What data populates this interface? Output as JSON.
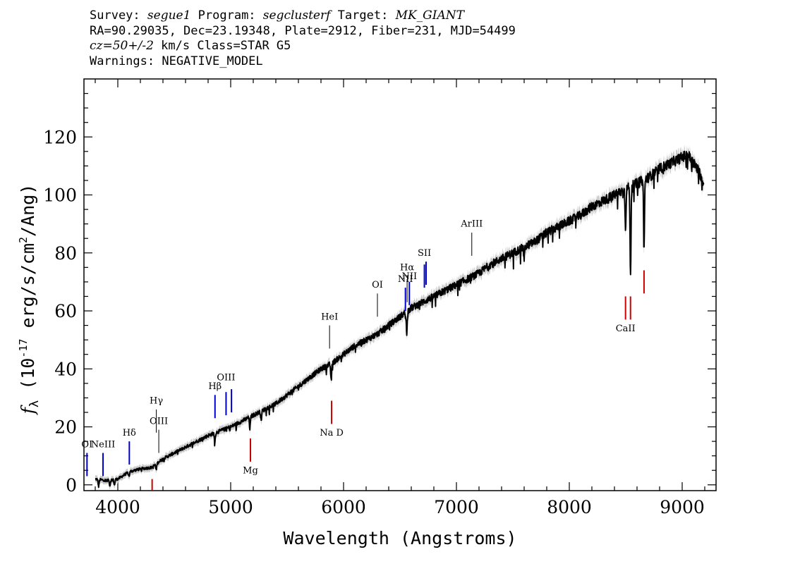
{
  "header": {
    "line1": {
      "survey_label": "Survey:",
      "survey": "segue1",
      "program_label": "Program:",
      "program": "segclusterf",
      "target_label": "Target:",
      "target": "MK_GIANT"
    },
    "line2": "RA=90.29035, Dec=23.19348, Plate=2912, Fiber=231, MJD=54499",
    "line3": {
      "cz": "cz=50+/-2",
      "cz_unit": "km/s",
      "class": "Class=STAR G5"
    },
    "line4": "Warnings: NEGATIVE_MODEL"
  },
  "chart_data": {
    "type": "line",
    "xlabel": "Wavelength (Angstroms)",
    "ylabel": "f_λ (10^-17 erg/s/cm^2/Ang)",
    "xlim": [
      3700,
      9300
    ],
    "ylim": [
      -2,
      140
    ],
    "x_ticks": [
      4000,
      5000,
      6000,
      7000,
      8000,
      9000
    ],
    "y_ticks": [
      0,
      20,
      40,
      60,
      80,
      100,
      120
    ],
    "x_tick_labels": [
      "4000",
      "5000",
      "6000",
      "7000",
      "8000",
      "9000"
    ],
    "y_tick_labels": [
      "0",
      "20",
      "40",
      "60",
      "80",
      "100",
      "120"
    ],
    "series": [
      {
        "color": "#000000",
        "continuum": [
          [
            3800,
            2
          ],
          [
            3900,
            1.5
          ],
          [
            4000,
            2
          ],
          [
            4100,
            4.5
          ],
          [
            4200,
            5.5
          ],
          [
            4300,
            6
          ],
          [
            4400,
            9
          ],
          [
            4500,
            11
          ],
          [
            4600,
            13
          ],
          [
            4700,
            15
          ],
          [
            4800,
            17
          ],
          [
            4900,
            18.5
          ],
          [
            5000,
            20
          ],
          [
            5100,
            22
          ],
          [
            5200,
            24
          ],
          [
            5300,
            26
          ],
          [
            5400,
            28
          ],
          [
            5500,
            31
          ],
          [
            5600,
            34
          ],
          [
            5700,
            37
          ],
          [
            5800,
            40
          ],
          [
            5900,
            42
          ],
          [
            6000,
            45
          ],
          [
            6100,
            48
          ],
          [
            6200,
            50
          ],
          [
            6300,
            52
          ],
          [
            6400,
            55
          ],
          [
            6500,
            58
          ],
          [
            6600,
            61
          ],
          [
            6700,
            63
          ],
          [
            6800,
            65
          ],
          [
            6900,
            67
          ],
          [
            7000,
            69
          ],
          [
            7100,
            71
          ],
          [
            7200,
            73
          ],
          [
            7300,
            76
          ],
          [
            7400,
            78
          ],
          [
            7500,
            80
          ],
          [
            7600,
            82
          ],
          [
            7700,
            84
          ],
          [
            7800,
            87
          ],
          [
            7900,
            89
          ],
          [
            8000,
            91
          ],
          [
            8100,
            93
          ],
          [
            8200,
            96
          ],
          [
            8300,
            98
          ],
          [
            8400,
            100
          ],
          [
            8500,
            102
          ],
          [
            8600,
            104
          ],
          [
            8700,
            106
          ],
          [
            8800,
            109
          ],
          [
            8900,
            111
          ],
          [
            9000,
            113
          ],
          [
            9050,
            114
          ],
          [
            9100,
            111
          ],
          [
            9150,
            108
          ],
          [
            9190,
            104
          ]
        ],
        "absorption": [
          [
            3830,
            2.5
          ],
          [
            3930,
            2
          ],
          [
            3970,
            2
          ],
          [
            4100,
            1.5
          ],
          [
            4340,
            2
          ],
          [
            4860,
            3
          ],
          [
            5170,
            4
          ],
          [
            5270,
            3
          ],
          [
            5890,
            6
          ],
          [
            6560,
            8
          ],
          [
            7600,
            4
          ],
          [
            8498,
            13
          ],
          [
            8542,
            31
          ],
          [
            8662,
            24
          ]
        ]
      }
    ],
    "line_markers": [
      {
        "label": "OI",
        "wave": 3727,
        "color": "#0000cc",
        "y_bottom": 3,
        "y_top": 11,
        "label_y": 13
      },
      {
        "label": "NeIII",
        "wave": 3869,
        "color": "#0000cc",
        "y_bottom": 3,
        "y_top": 11,
        "label_y": 13
      },
      {
        "label": "Hδ",
        "wave": 4102,
        "color": "#0000cc",
        "y_bottom": 7,
        "y_top": 15,
        "label_y": 17
      },
      {
        "label": "Hγ",
        "wave": 4341,
        "color": "#000000",
        "y_bottom": 18,
        "y_top": 26,
        "label_y": 28
      },
      {
        "label": "OIII",
        "wave": 4363,
        "color": "#000000",
        "y_bottom": 11,
        "y_top": 19,
        "label_y": 21
      },
      {
        "label": "Hβ",
        "wave": 4861,
        "color": "#0000cc",
        "y_bottom": 23,
        "y_top": 31,
        "label_y": 33
      },
      {
        "label": "OIII",
        "wave": 4959,
        "color": "#0000cc",
        "y_bottom": 24,
        "y_top": 32,
        "label_y": 36
      },
      {
        "label": "",
        "wave": 5007,
        "color": "#0000cc",
        "y_bottom": 25,
        "y_top": 33,
        "label_y": null
      },
      {
        "label": "HeI",
        "wave": 5876,
        "color": "#000000",
        "y_bottom": 47,
        "y_top": 55,
        "label_y": 57
      },
      {
        "label": "OI",
        "wave": 6300,
        "color": "#000000",
        "y_bottom": 58,
        "y_top": 66,
        "label_y": 68
      },
      {
        "label": "NII",
        "wave": 6548,
        "color": "#0000cc",
        "y_bottom": 60,
        "y_top": 68,
        "label_y": 70
      },
      {
        "label": "Hα",
        "wave": 6563,
        "color": "#000000",
        "y_bottom": 63,
        "y_top": 71,
        "label_y": 74
      },
      {
        "label": "NII",
        "wave": 6583,
        "color": "#0000cc",
        "y_bottom": 62,
        "y_top": 70,
        "label_y": 71
      },
      {
        "label": "SII",
        "wave": 6716,
        "color": "#0000cc",
        "y_bottom": 68,
        "y_top": 76,
        "label_y": 79
      },
      {
        "label": "",
        "wave": 6731,
        "color": "#0000cc",
        "y_bottom": 69,
        "y_top": 77,
        "label_y": null
      },
      {
        "label": "ArIII",
        "wave": 7136,
        "color": "#000000",
        "y_bottom": 79,
        "y_top": 87,
        "label_y": 89
      },
      {
        "label": "Mg",
        "wave": 5175,
        "color": "#cc0000",
        "y_bottom": 8,
        "y_top": 16,
        "label_y": 4
      },
      {
        "label": "Na D",
        "wave": 5894,
        "color": "#cc0000",
        "y_bottom": 21,
        "y_top": 29,
        "label_y": 17
      },
      {
        "label": "",
        "wave": 4304,
        "color": "#cc0000",
        "y_bottom": -2,
        "y_top": 2,
        "label_y": null
      },
      {
        "label": "CaII",
        "wave": 8498,
        "color": "#cc0000",
        "y_bottom": 57,
        "y_top": 65,
        "label_y": 53
      },
      {
        "label": "",
        "wave": 8542,
        "color": "#cc0000",
        "y_bottom": 57,
        "y_top": 65,
        "label_y": null
      },
      {
        "label": "",
        "wave": 8662,
        "color": "#cc0000",
        "y_bottom": 66,
        "y_top": 74,
        "label_y": null
      }
    ]
  }
}
